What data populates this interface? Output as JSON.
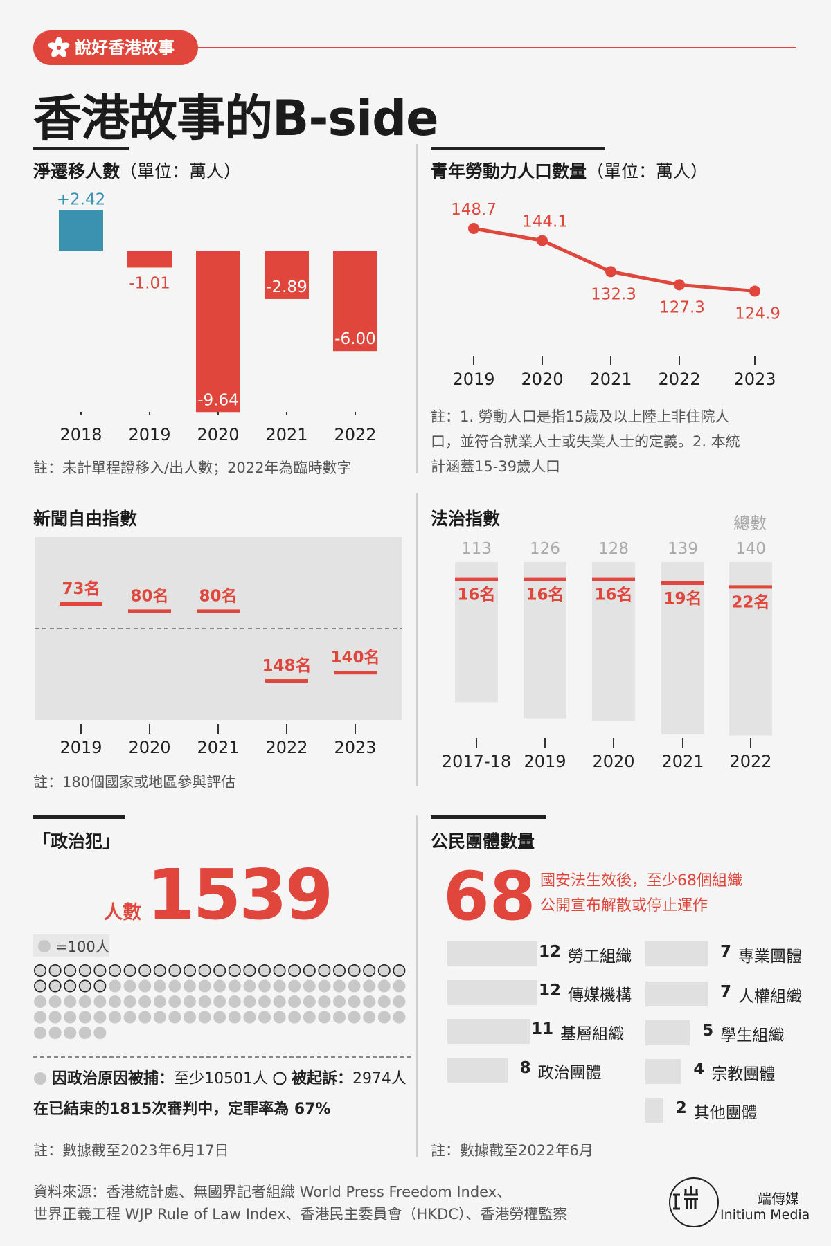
{
  "header": {
    "tag": "說好香港故事",
    "title": "香港故事的B-side"
  },
  "sections": {
    "migration": {
      "title": "淨遷移人數",
      "unit": "（單位：萬人）",
      "note": "註：未計單程證移入/出人數；2022年為臨時數字"
    },
    "labour": {
      "title": "青年勞動力人口數量",
      "unit": "（單位：萬人）",
      "note": [
        "註：1. 勞動人口是指15歲及以上陸上非住院人",
        "口，並符合就業人士或失業人士的定義。2. 本統",
        "計涵蓋15-39歲人口"
      ]
    },
    "press": {
      "title": "新聞自由指數",
      "note": "註：180個國家或地區參與評估"
    },
    "rule": {
      "title": "法治指數",
      "total_label": "總數"
    },
    "prisoners": {
      "title": "「政治犯」",
      "count_label": "人數",
      "count": "1539",
      "legend": "=100人",
      "arrested_label": "因政治原因被捕：",
      "arrested_value": "至少10501人",
      "charged_label": "被起訴：",
      "charged_value": "2974人",
      "conviction": "在已結束的1815次審判中，定罪率為 67%",
      "note": "註：數據截至2023年6月17日"
    },
    "civil": {
      "title": "公民團體數量",
      "big_number": "68",
      "desc": [
        "國安法生效後，至少68個組織",
        "公開宣布解散或停止運作"
      ],
      "note": "註：數據截至2022年6月"
    }
  },
  "chart_data": [
    {
      "type": "bar",
      "id": "net-migration",
      "title": "淨遷移人數",
      "unit": "萬人",
      "categories": [
        "2018",
        "2019",
        "2020",
        "2021",
        "2022"
      ],
      "values": [
        2.42,
        -1.01,
        -9.64,
        -2.89,
        -6.0
      ],
      "labels": [
        "+2.42",
        "-1.01",
        "-9.64",
        "-2.89",
        "-6.00"
      ],
      "colors": {
        "positive": "#3a92b0",
        "negative": "#e0463c"
      }
    },
    {
      "type": "line",
      "id": "youth-labour",
      "title": "青年勞動力人口數量",
      "unit": "萬人",
      "categories": [
        "2019",
        "2020",
        "2021",
        "2022",
        "2023"
      ],
      "values": [
        148.7,
        144.1,
        132.3,
        127.3,
        124.9
      ],
      "labels": [
        "148.7",
        "144.1",
        "132.3",
        "127.3",
        "124.9"
      ],
      "color": "#e0463c"
    },
    {
      "type": "bar",
      "id": "press-freedom",
      "title": "新聞自由指數",
      "categories": [
        "2019",
        "2020",
        "2021",
        "2022",
        "2023"
      ],
      "values": [
        73,
        80,
        80,
        148,
        140
      ],
      "labels": [
        "73名",
        "80名",
        "80名",
        "148名",
        "140名"
      ],
      "total": 180
    },
    {
      "type": "bar",
      "id": "rule-of-law",
      "title": "法治指數",
      "categories": [
        "2017-18",
        "2019",
        "2020",
        "2021",
        "2022"
      ],
      "ranks": [
        16,
        16,
        16,
        19,
        22
      ],
      "rank_labels": [
        "16名",
        "16名",
        "16名",
        "19名",
        "22名"
      ],
      "totals": [
        113,
        126,
        128,
        139,
        140
      ],
      "total_labels": [
        "113",
        "126",
        "128",
        "139",
        "140"
      ]
    },
    {
      "type": "bar",
      "id": "civil-groups",
      "title": "公民團體數量",
      "series": [
        {
          "label": "勞工組織",
          "value": 12
        },
        {
          "label": "傳媒機構",
          "value": 12
        },
        {
          "label": "基層組織",
          "value": 11
        },
        {
          "label": "政治團體",
          "value": 8
        },
        {
          "label": "專業團體",
          "value": 7
        },
        {
          "label": "人權組織",
          "value": 7
        },
        {
          "label": "學生組織",
          "value": 5
        },
        {
          "label": "宗教團體",
          "value": 4
        },
        {
          "label": "其他團體",
          "value": 2
        }
      ]
    },
    {
      "type": "pictogram",
      "id": "political-prisoners",
      "unit_per_dot": 100,
      "charged_dots": 30,
      "arrested_dots": 105
    }
  ],
  "footer": {
    "source_lines": [
      "資料來源：香港統計處、無國界記者組織 World Press Freedom Index、",
      "世界正義工程 WJP Rule of Law Index、香港民主委員會（HKDC）、香港勞權監察"
    ],
    "logo_glyph": "𝐈 山\n工 而",
    "brand_cn": "端傳媒",
    "brand_en": "Initium Media"
  },
  "colors": {
    "accent": "#e0463c",
    "positive": "#3a92b0",
    "text": "#222222",
    "muted": "#555555"
  }
}
